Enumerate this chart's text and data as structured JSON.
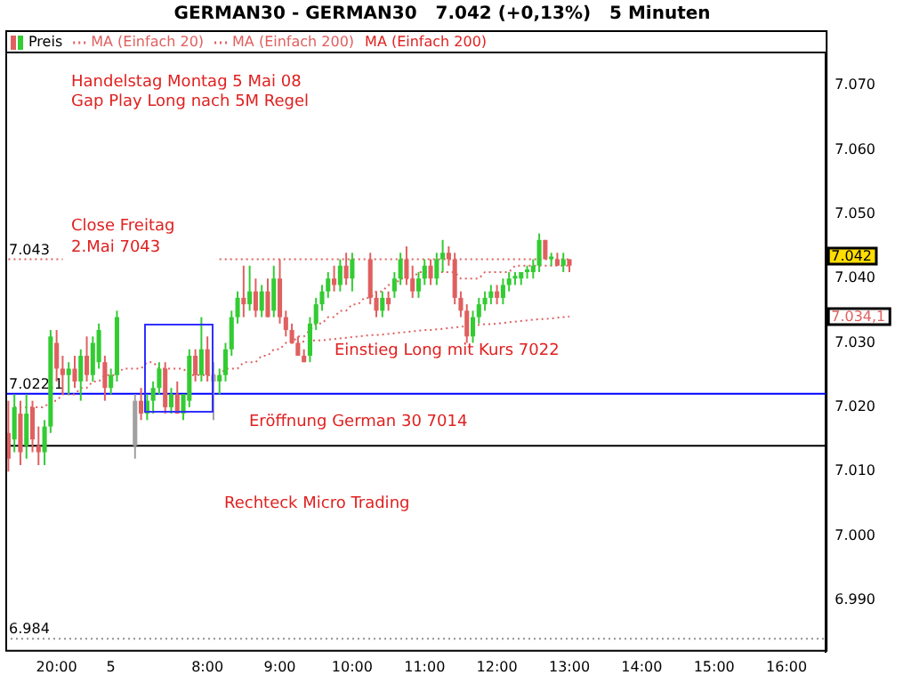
{
  "chart_data": {
    "type": "candlestick",
    "title": "GERMAN30 - GERMAN30   7.042 (+0,13%)   5 Minuten",
    "categories": [
      null,
      null,
      null,
      null,
      null,
      null,
      null,
      null,
      "20:00",
      null,
      null,
      null,
      null,
      null,
      null,
      null,
      null,
      "5",
      null,
      null,
      null,
      null,
      null,
      null,
      null,
      null,
      null,
      null,
      null,
      null,
      null,
      null,
      null,
      "8:00",
      null,
      null,
      null,
      null,
      null,
      null,
      null,
      null,
      null,
      null,
      null,
      "9:00",
      null,
      null,
      null,
      null,
      null,
      null,
      null,
      null,
      null,
      null,
      null,
      "10:00",
      null,
      null,
      null,
      null,
      null,
      null,
      null,
      null,
      null,
      null,
      null,
      "11:00",
      null,
      null,
      null,
      null,
      null,
      null,
      null,
      null,
      null,
      null,
      null,
      "12:00",
      null,
      null,
      null,
      null,
      null,
      null,
      null,
      null,
      null,
      null,
      null,
      "13:00",
      null,
      null,
      null,
      null,
      null,
      null,
      null,
      null,
      null,
      null,
      null,
      "14:00",
      null,
      null,
      null,
      null,
      null,
      null,
      null,
      null,
      null,
      null,
      null,
      "15:00",
      null,
      null,
      null,
      null,
      null,
      null,
      null,
      null,
      null,
      null,
      null,
      "16:00",
      null,
      null,
      null,
      null,
      null,
      null
    ],
    "series": [
      {
        "name": "Preis",
        "ohlc": [
          [
            7016,
            7021,
            7010,
            7012
          ],
          [
            7015,
            7022,
            7013,
            7020
          ],
          [
            7019,
            7021,
            7011,
            7013
          ],
          [
            7014,
            7022,
            7012,
            7019
          ],
          [
            7020,
            7021,
            7013,
            7015
          ],
          [
            7014,
            7017,
            7011,
            7013
          ],
          [
            7013,
            7018,
            7011,
            7017
          ],
          [
            7017,
            7032,
            7016,
            7031
          ],
          [
            7030,
            7032,
            7024,
            7026
          ],
          [
            7026,
            7028,
            7022,
            7025
          ],
          [
            7025,
            7027,
            7022,
            7026
          ],
          [
            7026,
            7028,
            7023,
            7024
          ],
          [
            7024,
            7029,
            7021,
            7028
          ],
          [
            7028,
            7031,
            7024,
            7025
          ],
          [
            7025,
            7031,
            7024,
            7030
          ],
          [
            7027,
            7033,
            7026,
            7032
          ],
          [
            7027,
            7028,
            7021,
            7023
          ],
          [
            7023,
            7026,
            7022,
            7025
          ],
          [
            7025,
            7035,
            7024,
            7034
          ],
          null,
          null,
          [
            7014,
            7022,
            7012,
            7021
          ],
          [
            7021,
            7023,
            7018,
            7019
          ],
          [
            7019,
            7022,
            7018,
            7021
          ],
          [
            7021,
            7024,
            7019,
            7023
          ],
          [
            7023,
            7027,
            7022,
            7026
          ],
          [
            7026,
            7027,
            7019,
            7020
          ],
          [
            7020,
            7023,
            7019,
            7022
          ],
          [
            7022,
            7024,
            7019,
            7019
          ],
          [
            7019,
            7022,
            7018,
            7022
          ],
          [
            7021,
            7029,
            7020,
            7028
          ],
          [
            7028,
            7029,
            7024,
            7025
          ],
          [
            7025,
            7034,
            7024,
            7029
          ],
          [
            7029,
            7031,
            7024,
            7025
          ],
          [
            7025,
            7027,
            7018,
            7024
          ],
          [
            7024,
            7026,
            7022,
            7025
          ],
          [
            7025,
            7030,
            7024,
            7029
          ],
          [
            7029,
            7035,
            7028,
            7034
          ],
          [
            7034,
            7038,
            7033,
            7037
          ],
          [
            7037,
            7042,
            7034,
            7036
          ],
          [
            7036,
            7042,
            7035,
            7038
          ],
          [
            7038,
            7040,
            7034,
            7035
          ],
          [
            7035,
            7039,
            7034,
            7038
          ],
          [
            7038,
            7040,
            7034,
            7034
          ],
          [
            7035,
            7042,
            7034,
            7040
          ],
          [
            7040,
            7043,
            7033,
            7034
          ],
          [
            7034,
            7035,
            7031,
            7032
          ],
          [
            7032,
            7033,
            7030,
            7030
          ],
          [
            7030,
            7031,
            7028,
            7028
          ],
          [
            7028,
            7029,
            7027,
            7027
          ],
          [
            7028,
            7034,
            7027,
            7033
          ],
          [
            7033,
            7037,
            7032,
            7036
          ],
          [
            7036,
            7039,
            7035,
            7038
          ],
          [
            7038,
            7041,
            7037,
            7040
          ],
          [
            7040,
            7042,
            7038,
            7039
          ],
          [
            7039,
            7043,
            7038,
            7042
          ],
          [
            7042,
            7044,
            7039,
            7040
          ],
          [
            7040,
            7044,
            7038,
            7043
          ],
          null,
          null,
          [
            7043,
            7044,
            7036,
            7037
          ],
          [
            7037,
            7038,
            7034,
            7035
          ],
          [
            7035,
            7038,
            7034,
            7037
          ],
          [
            7037,
            7038,
            7035,
            7036
          ],
          [
            7038,
            7041,
            7037,
            7040
          ],
          [
            7040,
            7044,
            7039,
            7043
          ],
          [
            7043,
            7045,
            7039,
            7040
          ],
          [
            7040,
            7042,
            7037,
            7038
          ],
          [
            7038,
            7041,
            7037,
            7040
          ],
          [
            7040,
            7043,
            7039,
            7042
          ],
          [
            7042,
            7043,
            7039,
            7040
          ],
          [
            7040,
            7044,
            7039,
            7043
          ],
          [
            7043,
            7046,
            7041,
            7044
          ],
          [
            7044,
            7045,
            7042,
            7043
          ],
          [
            7043,
            7044,
            7036,
            7037
          ],
          [
            7037,
            7038,
            7034,
            7035
          ],
          [
            7035,
            7036,
            7030,
            7031
          ],
          [
            7031,
            7035,
            7030,
            7034
          ],
          [
            7034,
            7037,
            7033,
            7036
          ],
          [
            7036,
            7038,
            7035,
            7037
          ],
          [
            7037,
            7039,
            7036,
            7038
          ],
          [
            7038,
            7039,
            7036,
            7037
          ],
          [
            7037,
            7040,
            7036,
            7039
          ],
          [
            7039,
            7041,
            7038,
            7040
          ],
          [
            7040,
            7041,
            7039,
            7040
          ],
          [
            7040,
            7041,
            7039,
            7041
          ],
          [
            7041,
            7042,
            7040,
            7041
          ],
          [
            7041,
            7043,
            7040,
            7042
          ],
          [
            7042,
            7047,
            7041,
            7046
          ],
          [
            7046,
            7046,
            7043,
            7043
          ],
          [
            7043,
            7044,
            7042,
            7043
          ],
          [
            7043,
            7044,
            7042,
            7042
          ],
          [
            7042,
            7044,
            7041,
            7043
          ],
          [
            7043,
            7043,
            7041,
            7042
          ],
          null,
          null,
          null,
          null,
          null,
          null,
          null,
          null,
          null,
          null,
          null,
          null,
          null,
          null,
          null,
          null,
          null,
          null,
          null,
          null,
          null,
          null,
          null,
          null,
          null,
          null,
          null,
          null,
          null,
          null,
          null,
          null,
          null,
          null,
          null,
          null,
          null,
          null,
          null,
          null,
          null,
          null
        ],
        "colors": [
          "#e06060",
          "#33cc33",
          "#e06060",
          "#33cc33",
          "#e06060",
          "#e06060",
          "#33cc33",
          "#33cc33",
          "#e06060",
          "#e06060",
          "#33cc33",
          "#e06060",
          "#33cc33",
          "#e06060",
          "#33cc33",
          "#33cc33",
          "#e06060",
          "#33cc33",
          "#33cc33",
          null,
          null,
          "#a0a0a0",
          "#e06060",
          "#33cc33",
          "#33cc33",
          "#33cc33",
          "#e06060",
          "#33cc33",
          "#e06060",
          "#33cc33",
          "#33cc33",
          "#e06060",
          "#33cc33",
          "#e06060",
          "#a0a0a0",
          "#33cc33",
          "#33cc33",
          "#33cc33",
          "#33cc33",
          "#e06060",
          "#33cc33",
          "#e06060",
          "#33cc33",
          "#e06060",
          "#33cc33",
          "#e06060",
          "#e06060",
          "#e06060",
          "#e06060",
          "#e06060",
          "#33cc33",
          "#33cc33",
          "#33cc33",
          "#33cc33",
          "#e06060",
          "#33cc33",
          "#e06060",
          "#33cc33",
          null,
          null,
          "#e06060",
          "#e06060",
          "#33cc33",
          "#e06060",
          "#33cc33",
          "#33cc33",
          "#e06060",
          "#e06060",
          "#33cc33",
          "#33cc33",
          "#e06060",
          "#33cc33",
          "#33cc33",
          "#e06060",
          "#e06060",
          "#e06060",
          "#e06060",
          "#33cc33",
          "#33cc33",
          "#33cc33",
          "#33cc33",
          "#e06060",
          "#33cc33",
          "#33cc33",
          "#33cc33",
          "#33cc33",
          "#33cc33",
          "#33cc33",
          "#33cc33",
          "#e06060",
          "#33cc33",
          "#e06060",
          "#33cc33",
          "#e06060",
          null,
          null,
          null,
          null,
          null,
          null,
          null,
          null,
          null,
          null,
          null,
          null,
          null,
          null,
          null,
          null,
          null,
          null,
          null,
          null,
          null,
          null,
          null,
          null,
          null,
          null,
          null,
          null,
          null,
          null,
          null,
          null,
          null,
          null,
          null,
          null,
          null,
          null,
          null,
          null,
          null,
          null
        ]
      },
      {
        "type": "line",
        "name": "MA (Einfach 20)",
        "color": "#e06060",
        "line_style": "dotted",
        "values": [
          null,
          7020,
          7020,
          7020,
          7020,
          7020,
          7020,
          7021,
          7021,
          7022,
          7022,
          7022,
          7023,
          7023,
          7024,
          7024,
          7025,
          7025,
          7025,
          7026,
          7026,
          7026,
          7026,
          7027,
          7027,
          7026,
          7026,
          7026,
          7026,
          7026,
          7025,
          7025,
          7025,
          7025,
          7025,
          7025,
          7026,
          7026,
          7026,
          7027,
          7027,
          7027,
          7028,
          7028,
          7029,
          7029,
          7030,
          7030,
          7031,
          7031,
          7032,
          7033,
          7033,
          7034,
          7034,
          7035,
          7035,
          7036,
          7036,
          7037,
          7037,
          7038,
          7038,
          7039,
          7039,
          7040,
          7040,
          7040,
          7041,
          7041,
          7041,
          7041,
          7041,
          7041,
          7041,
          7040,
          7040,
          7040,
          7040,
          7041,
          7041,
          7041,
          7041,
          7041,
          7042,
          7042,
          7042,
          7042,
          7042,
          7042,
          7042,
          7042,
          7042,
          7042,
          null,
          null,
          null,
          null,
          null,
          null,
          null,
          null,
          null,
          null,
          null,
          null,
          null,
          null,
          null,
          null,
          null,
          null,
          null,
          null,
          null,
          null,
          null,
          null,
          null,
          null,
          null,
          null,
          null,
          null,
          null,
          null,
          null,
          null,
          null,
          null,
          null,
          null,
          null,
          null,
          null,
          null
        ]
      },
      {
        "type": "line",
        "name": "MA (Einfach 200)",
        "color": "#e06060",
        "line_style": "dotted",
        "values": [
          null,
          null,
          null,
          null,
          null,
          null,
          null,
          null,
          null,
          null,
          null,
          null,
          null,
          null,
          null,
          null,
          null,
          null,
          null,
          null,
          null,
          null,
          null,
          null,
          null,
          null,
          null,
          null,
          null,
          null,
          null,
          null,
          null,
          null,
          null,
          null,
          null,
          null,
          null,
          null,
          null,
          null,
          null,
          null,
          null,
          null,
          null,
          7030.0,
          7030.1,
          7030.2,
          7030.3,
          7030.4,
          7030.4,
          7030.5,
          7030.6,
          7030.7,
          7030.8,
          7030.9,
          7031.0,
          7031.1,
          7031.2,
          7031.2,
          7031.3,
          7031.4,
          7031.5,
          7031.6,
          7031.7,
          7031.8,
          7031.9,
          7032.0,
          7032.0,
          7032.1,
          7032.2,
          7032.3,
          7032.4,
          7032.5,
          7032.6,
          7032.7,
          7032.8,
          7032.9,
          7032.9,
          7033.0,
          7033.1,
          7033.2,
          7033.3,
          7033.4,
          7033.5,
          7033.6,
          7033.7,
          7033.7,
          7033.8,
          7033.9,
          7034.0,
          7034.1,
          null,
          null,
          null,
          null,
          null,
          null,
          null,
          null,
          null,
          null,
          null,
          null,
          null,
          null,
          null,
          null,
          null,
          null,
          null,
          null,
          null,
          null,
          null,
          null,
          null,
          null,
          null,
          null,
          null,
          null,
          null,
          null,
          null,
          null,
          null,
          null,
          null,
          null,
          null,
          null,
          null,
          null
        ]
      },
      {
        "type": "line",
        "color": "#e06060",
        "line_style": "dotted",
        "values": [
          7043,
          7043,
          7043,
          7043,
          7043,
          7043,
          7043,
          7043,
          7043,
          7043,
          null,
          null,
          null,
          null,
          null,
          null,
          null,
          null,
          null,
          null,
          null,
          null,
          null,
          null,
          null,
          null,
          null,
          null,
          null,
          null,
          null,
          null,
          null,
          null,
          null,
          7043,
          7043,
          7043,
          7043,
          7043,
          7043,
          7043,
          7043,
          7043,
          7043,
          7043,
          7043,
          7043,
          7043,
          7043,
          7043,
          7043,
          7043,
          7043,
          7043,
          7043,
          7043,
          7043,
          7043,
          7043,
          7043,
          7043,
          7043,
          7043,
          7043,
          7043,
          7043,
          7043,
          7043,
          7043,
          7043,
          7043,
          7043,
          7043,
          7043,
          7043,
          7043,
          7043,
          7043,
          7043,
          7043,
          7043,
          7043,
          7043,
          7043,
          7043,
          7043,
          7043,
          7043,
          7043,
          7043,
          7043,
          7043,
          7043,
          null,
          null,
          null,
          null,
          null,
          null,
          null,
          null,
          null,
          null,
          null,
          null,
          null,
          null,
          null,
          null,
          null,
          null,
          null,
          null,
          null,
          null,
          null,
          null,
          null,
          null,
          null,
          null,
          null,
          null,
          null,
          null,
          null,
          null,
          null,
          null,
          null,
          null,
          null,
          null,
          null,
          null
        ]
      }
    ],
    "ylim": [
      6982,
      7075
    ],
    "yticks": [
      {
        "value": 6990,
        "label": "6.990"
      },
      {
        "value": 7000,
        "label": "7.000"
      },
      {
        "value": 7010,
        "label": "7.010"
      },
      {
        "value": 7020,
        "label": "7.020"
      },
      {
        "value": 7030,
        "label": "7.030"
      },
      {
        "value": 7040,
        "label": "7.040"
      },
      {
        "value": 7050,
        "label": "7.050"
      },
      {
        "value": 7060,
        "label": "7.060"
      },
      {
        "value": 7070,
        "label": "7.070"
      }
    ],
    "ref_lines": [
      {
        "axis": "y",
        "value": 7022.1,
        "label": "7.022,1",
        "color": "#0000ff",
        "line_style": "solid"
      },
      {
        "axis": "y",
        "value": 7014,
        "label": null,
        "color": "#000000",
        "line_style": "solid"
      },
      {
        "axis": "y",
        "value": 6984,
        "label": "6.984",
        "color": "#909090",
        "line_style": "dotted"
      }
    ],
    "annotations": [
      "Handelstag Montag 5 Mai 08",
      "Gap Play Long nach 5M Regel",
      "Close Freitag",
      "2.Mai 7043",
      "Einstieg Long mit Kurs 7022",
      "Eröffnung German 30 7014",
      "Rechteck Micro Trading",
      "MA (Einfach 200)",
      {
        "text": "7.043",
        "y": 7043
      },
      "7.042",
      "7.034,1"
    ],
    "grid": false,
    "legend": "top left",
    "marker": "none"
  }
}
